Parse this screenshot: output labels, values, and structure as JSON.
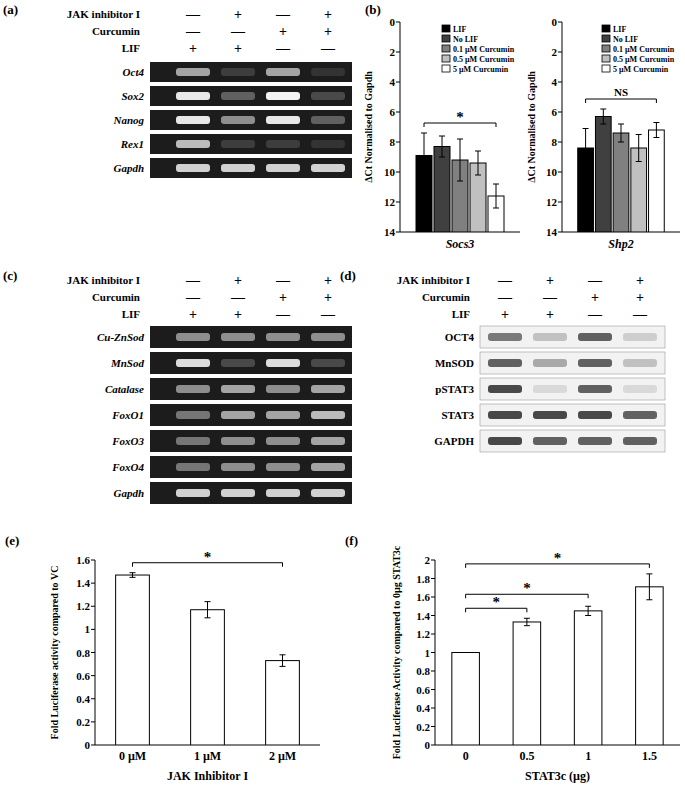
{
  "gels": [
    {
      "panel": "(a)",
      "type": "gel",
      "conditions": [
        {
          "label": "JAK inhibitor I",
          "signs": [
            "—",
            "+",
            "—",
            "+"
          ]
        },
        {
          "label": "Curcumin",
          "signs": [
            "—",
            "—",
            "+",
            "+"
          ]
        },
        {
          "label": "LIF",
          "signs": [
            "+",
            "+",
            "—",
            "—"
          ]
        }
      ],
      "rows": [
        {
          "label": "Oct4",
          "bands": [
            0.6,
            0.15,
            0.6,
            0.1
          ]
        },
        {
          "label": "Sox2",
          "bands": [
            0.9,
            0.3,
            0.95,
            0.2
          ]
        },
        {
          "label": "Nanog",
          "bands": [
            0.9,
            0.5,
            0.9,
            0.3
          ]
        },
        {
          "label": "Rex1",
          "bands": [
            0.7,
            0.15,
            0.15,
            0.1
          ]
        },
        {
          "label": "Gapdh",
          "bands": [
            0.8,
            0.8,
            0.8,
            0.8
          ]
        }
      ]
    },
    {
      "panel": "(c)",
      "type": "gel",
      "conditions": [
        {
          "label": "JAK inhibitor I",
          "signs": [
            "—",
            "+",
            "—",
            "+"
          ]
        },
        {
          "label": "Curcumin",
          "signs": [
            "—",
            "—",
            "+",
            "+"
          ]
        },
        {
          "label": "LIF",
          "signs": [
            "+",
            "+",
            "—",
            "—"
          ]
        }
      ],
      "rows": [
        {
          "label": "Cu-ZnSod",
          "bands": [
            0.5,
            0.5,
            0.5,
            0.5
          ]
        },
        {
          "label": "MnSod",
          "bands": [
            0.85,
            0.2,
            0.85,
            0.2
          ]
        },
        {
          "label": "Catalase",
          "bands": [
            0.5,
            0.6,
            0.5,
            0.6
          ]
        },
        {
          "label": "FoxO1",
          "bands": [
            0.4,
            0.6,
            0.6,
            0.7
          ]
        },
        {
          "label": "FoxO3",
          "bands": [
            0.4,
            0.5,
            0.5,
            0.6
          ]
        },
        {
          "label": "FoxO4",
          "bands": [
            0.4,
            0.5,
            0.5,
            0.6
          ]
        },
        {
          "label": "Gapdh",
          "bands": [
            0.8,
            0.8,
            0.8,
            0.8
          ]
        }
      ]
    },
    {
      "panel": "(d)",
      "type": "blot",
      "conditions": [
        {
          "label": "JAK inhibitor I",
          "signs": [
            "—",
            "+",
            "—",
            "+"
          ]
        },
        {
          "label": "Curcumin",
          "signs": [
            "—",
            "—",
            "+",
            "+"
          ]
        },
        {
          "label": "LIF",
          "signs": [
            "+",
            "+",
            "—",
            "—"
          ]
        }
      ],
      "rows": [
        {
          "label": "OCT4",
          "bands": [
            0.5,
            0.2,
            0.6,
            0.15
          ]
        },
        {
          "label": "MnSOD",
          "bands": [
            0.6,
            0.3,
            0.6,
            0.2
          ]
        },
        {
          "label": "pSTAT3",
          "bands": [
            0.7,
            0.1,
            0.6,
            0.1
          ]
        },
        {
          "label": "STAT3",
          "bands": [
            0.7,
            0.7,
            0.7,
            0.6
          ]
        },
        {
          "label": "GAPDH",
          "bands": [
            0.7,
            0.6,
            0.6,
            0.6
          ]
        }
      ]
    }
  ],
  "chart_data": [
    {
      "type": "bar",
      "panel": "(b)",
      "categories": [
        "Socs3"
      ],
      "y_label": "ΔCt Normalised to Gapdh",
      "ylim": [
        14,
        0
      ],
      "yticks": [
        0,
        2,
        4,
        6,
        8,
        10,
        12,
        14
      ],
      "legend": "top-right",
      "series": [
        {
          "name": "LIF",
          "color": "#000000",
          "values": [
            8.9
          ],
          "errors": [
            1.5
          ]
        },
        {
          "name": "No LIF",
          "color": "#404040",
          "values": [
            8.3
          ],
          "errors": [
            0.7
          ]
        },
        {
          "name": "0.1 µM Curcumin",
          "color": "#808080",
          "values": [
            9.2
          ],
          "errors": [
            1.4
          ]
        },
        {
          "name": "0.5 µM Curcumin",
          "color": "#c0c0c0",
          "values": [
            9.4
          ],
          "errors": [
            0.8
          ]
        },
        {
          "name": "5 µM Curcumin",
          "color": "#ffffff",
          "values": [
            11.6
          ],
          "errors": [
            0.8
          ]
        }
      ],
      "annotations": [
        {
          "text": "*",
          "between": [
            "LIF",
            "5 µM Curcumin"
          ]
        }
      ]
    },
    {
      "type": "bar",
      "categories": [
        "Shp2"
      ],
      "y_label": "ΔCt Normalised to Gapdh",
      "ylim": [
        14,
        0
      ],
      "yticks": [
        0,
        2,
        4,
        6,
        8,
        10,
        12,
        14
      ],
      "legend": "top-right",
      "series": [
        {
          "name": "LIF",
          "color": "#000000",
          "values": [
            8.4
          ],
          "errors": [
            1.3
          ]
        },
        {
          "name": "No LIF",
          "color": "#404040",
          "values": [
            6.3
          ],
          "errors": [
            0.5
          ]
        },
        {
          "name": "0.1 µM Curcumin",
          "color": "#808080",
          "values": [
            7.4
          ],
          "errors": [
            0.6
          ]
        },
        {
          "name": "0.5 µM Curcumin",
          "color": "#c0c0c0",
          "values": [
            8.4
          ],
          "errors": [
            0.9
          ]
        },
        {
          "name": "5 µM Curcumin",
          "color": "#ffffff",
          "values": [
            7.2
          ],
          "errors": [
            0.5
          ]
        }
      ],
      "annotations": [
        {
          "text": "NS",
          "between": [
            "LIF",
            "5 µM Curcumin"
          ]
        }
      ]
    },
    {
      "type": "bar",
      "panel": "(e)",
      "categories": [
        "0 µM",
        "1 µM",
        "2 µM"
      ],
      "values": [
        1.47,
        1.17,
        0.73
      ],
      "errors": [
        0.02,
        0.07,
        0.05
      ],
      "color": "#ffffff",
      "x_label": "JAK Inhibitor I",
      "y_label": "Fold Luciferase activity compared to VC",
      "ylim": [
        0,
        1.6
      ],
      "yticks": [
        0,
        0.2,
        0.4,
        0.6,
        0.8,
        1,
        1.2,
        1.4,
        1.6
      ],
      "annotations": [
        {
          "text": "*",
          "between": [
            "0 µM",
            "2 µM"
          ]
        }
      ]
    },
    {
      "type": "bar",
      "panel": "(f)",
      "categories": [
        "0",
        "0.5",
        "1",
        "1.5"
      ],
      "values": [
        1,
        1.33,
        1.45,
        1.71
      ],
      "errors": [
        0,
        0.04,
        0.05,
        0.14
      ],
      "color": "#ffffff",
      "x_label": "STAT3c (µg)",
      "y_label": "Fold Luciferase Activity compared to 0µg STAT3c",
      "ylim": [
        0,
        2
      ],
      "yticks": [
        0,
        0.2,
        0.4,
        0.6,
        0.8,
        1,
        1.2,
        1.4,
        1.6,
        1.8,
        2
      ],
      "annotations": [
        {
          "text": "*",
          "between": [
            "0",
            "0.5"
          ]
        },
        {
          "text": "*",
          "between": [
            "0",
            "1"
          ]
        },
        {
          "text": "*",
          "between": [
            "0",
            "1.5"
          ]
        }
      ]
    }
  ]
}
